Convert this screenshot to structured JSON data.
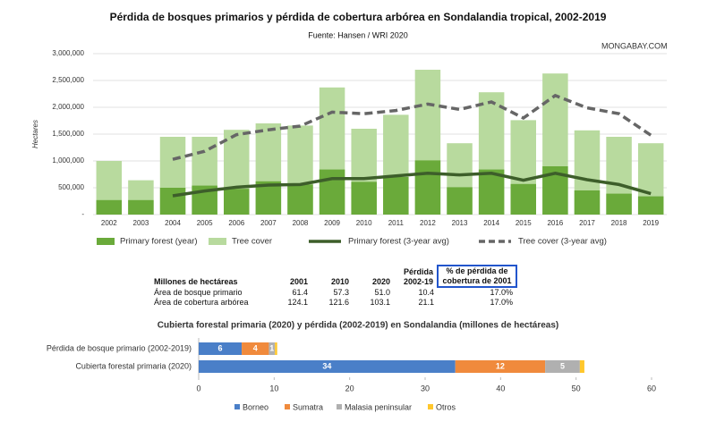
{
  "chart_data": [
    {
      "type": "bar",
      "title": "Pérdida de bosques primarios y pérdida de cobertura arbórea en Sondalandia tropical, 2002-2019",
      "subtitle": "Fuente: Hansen / WRI 2020",
      "watermark": "MONGABAY.COM",
      "y_label": "Hectares",
      "categories": [
        "2002",
        "2003",
        "2004",
        "2005",
        "2006",
        "2007",
        "2008",
        "2009",
        "2010",
        "2011",
        "2012",
        "2013",
        "2014",
        "2015",
        "2016",
        "2017",
        "2018",
        "2019"
      ],
      "series": [
        {
          "name": "Tree cover",
          "type": "bar",
          "color": "#b8da9e",
          "values": [
            1000000,
            640000,
            1450000,
            1450000,
            1580000,
            1700000,
            1660000,
            2370000,
            1600000,
            1860000,
            2700000,
            1330000,
            2280000,
            1760000,
            2630000,
            1570000,
            1450000,
            1330000
          ]
        },
        {
          "name": "Primary forest (year)",
          "type": "bar",
          "color": "#6aaa3a",
          "values": [
            270000,
            270000,
            500000,
            540000,
            480000,
            620000,
            560000,
            840000,
            610000,
            700000,
            1010000,
            510000,
            840000,
            570000,
            900000,
            450000,
            390000,
            340000
          ]
        },
        {
          "name": "Primary forest (3-year avg)",
          "type": "line",
          "color": "#3d5e2a",
          "dashed": false,
          "values": [
            null,
            null,
            350000,
            440000,
            510000,
            550000,
            560000,
            670000,
            670000,
            720000,
            770000,
            740000,
            770000,
            640000,
            770000,
            650000,
            560000,
            390000
          ]
        },
        {
          "name": "Tree cover (3-year avg)",
          "type": "line",
          "color": "#666666",
          "dashed": true,
          "values": [
            null,
            null,
            1030000,
            1180000,
            1490000,
            1580000,
            1650000,
            1910000,
            1880000,
            1940000,
            2060000,
            1960000,
            2100000,
            1800000,
            2220000,
            1990000,
            1880000,
            1480000
          ]
        }
      ],
      "legend_order": [
        1,
        0,
        2,
        3
      ],
      "ylim": [
        0,
        3000000
      ],
      "yticks": [
        {
          "value": 0,
          "label": "-"
        },
        {
          "value": 500000,
          "label": "500,000"
        },
        {
          "value": 1000000,
          "label": "1,000,000"
        },
        {
          "value": 1500000,
          "label": "1,500,000"
        },
        {
          "value": 2000000,
          "label": "2,000,000"
        },
        {
          "value": 2500000,
          "label": "2,500,000"
        },
        {
          "value": 3000000,
          "label": "3,000,000"
        }
      ],
      "grid": true
    },
    {
      "type": "hbar_stacked",
      "title": "Cubierta forestal primaria (2020) y pérdida (2002-2019) en Sondalandia (millones de hectáreas)",
      "categories": [
        "Pérdida de bosque primario (2002-2019)",
        "Cubierta forestal primaria (2020)"
      ],
      "series": [
        {
          "name": "Borneo",
          "color": "#4a7fc8",
          "values": [
            5.7,
            34
          ],
          "value_labels": [
            "6",
            "34"
          ]
        },
        {
          "name": "Sumatra",
          "color": "#f08a3c",
          "values": [
            3.6,
            11.9
          ],
          "value_labels": [
            "4",
            "12"
          ]
        },
        {
          "name": "Malasia peninsular",
          "color": "#b0b0b0",
          "values": [
            0.8,
            4.6
          ],
          "value_labels": [
            "1",
            "5"
          ]
        },
        {
          "name": "Otros",
          "color": "#ffc72c",
          "values": [
            0.3,
            0.6
          ]
        }
      ],
      "xlim": [
        0,
        60
      ],
      "xticks": [
        0,
        10,
        20,
        30,
        40,
        50,
        60
      ],
      "grid": false
    }
  ],
  "table": {
    "header": [
      "Millones de hectáreas",
      "2001",
      "2010",
      "2020",
      "Pérdida 2002-19",
      "% de pérdida de cobertura de 2001"
    ],
    "rows": [
      [
        "Área de bosque primario",
        "61.4",
        "57.3",
        "51.0",
        "10.4",
        "17.0%"
      ],
      [
        "Área de cobertura arbórea",
        "124.1",
        "121.6",
        "103.1",
        "21.1",
        "17.0%"
      ]
    ]
  }
}
